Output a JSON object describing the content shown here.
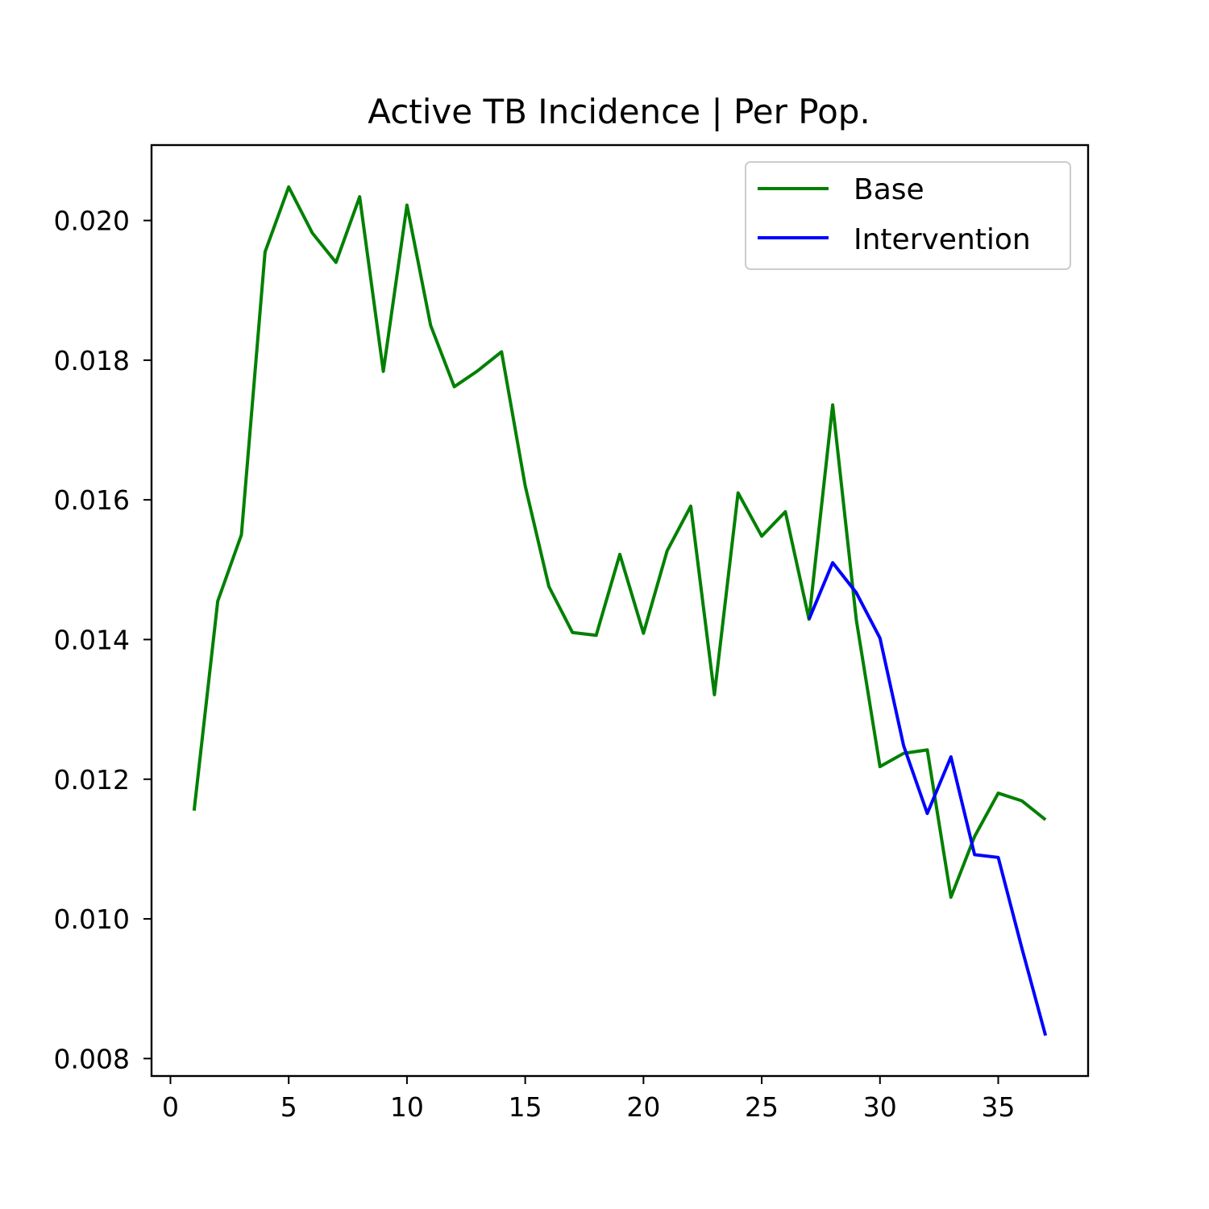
{
  "chart_data": {
    "type": "line",
    "title": "Active TB Incidence | Per Pop.",
    "xlabel": "",
    "ylabel": "",
    "xlim": [
      -0.8,
      38.8
    ],
    "ylim": [
      0.00775,
      0.02108
    ],
    "xticks": [
      0,
      5,
      10,
      15,
      20,
      25,
      30,
      35
    ],
    "yticks": [
      0.008,
      0.01,
      0.012,
      0.014,
      0.016,
      0.018,
      0.02
    ],
    "ytick_labels": [
      "0.008",
      "0.010",
      "0.012",
      "0.014",
      "0.016",
      "0.018",
      "0.020"
    ],
    "legend_position": "top-right",
    "grid": false,
    "series": [
      {
        "name": "Base",
        "color": "#008000",
        "x": [
          1,
          2,
          3,
          4,
          5,
          6,
          7,
          8,
          9,
          10,
          11,
          12,
          13,
          14,
          15,
          16,
          17,
          18,
          19,
          20,
          21,
          22,
          23,
          24,
          25,
          26,
          27,
          28,
          29,
          30,
          31,
          32,
          33,
          34,
          35,
          36,
          37
        ],
        "values": [
          0.01155,
          0.01455,
          0.0155,
          0.01955,
          0.02048,
          0.01982,
          0.0194,
          0.02034,
          0.01784,
          0.02022,
          0.0185,
          0.01762,
          0.01785,
          0.01812,
          0.0162,
          0.01476,
          0.0141,
          0.01406,
          0.01522,
          0.01409,
          0.01527,
          0.01591,
          0.01321,
          0.0161,
          0.01548,
          0.01583,
          0.01429,
          0.01736,
          0.01428,
          0.01218,
          0.01237,
          0.01242,
          0.01031,
          0.01118,
          0.0118,
          0.01169,
          0.01142
        ]
      },
      {
        "name": "Intervention",
        "color": "#0000ff",
        "x": [
          27,
          28,
          29,
          30,
          31,
          32,
          33,
          34,
          35,
          36,
          37
        ],
        "values": [
          0.01429,
          0.0151,
          0.01467,
          0.01402,
          0.01248,
          0.01151,
          0.01232,
          0.01092,
          0.01088,
          0.00958,
          0.00833
        ]
      }
    ]
  }
}
